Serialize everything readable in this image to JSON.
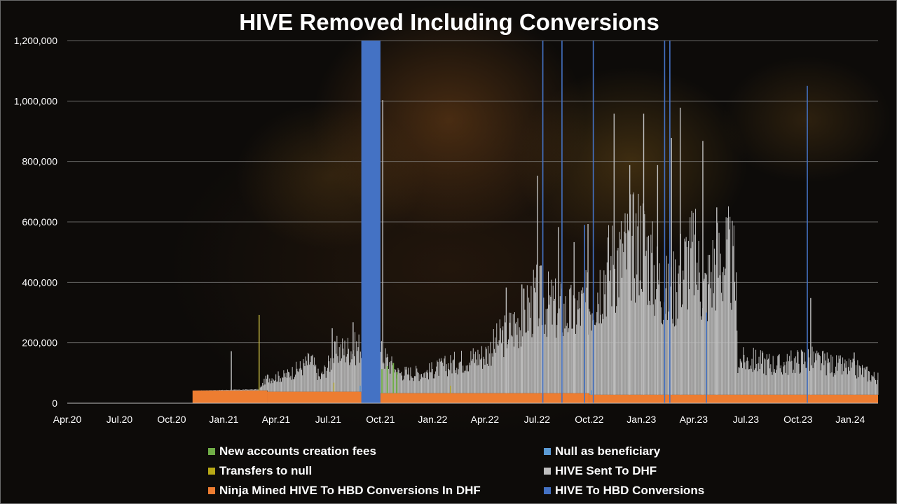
{
  "chart_data": {
    "type": "bar",
    "stacked": true,
    "title": "HIVE Removed Including Conversions",
    "xlabel": "",
    "ylabel": "",
    "ylim": [
      0,
      1200000
    ],
    "yticks": [
      0,
      200000,
      400000,
      600000,
      800000,
      1000000,
      1200000
    ],
    "ytick_labels": [
      "0",
      "200,000",
      "400,000",
      "600,000",
      "800,000",
      "1,000,000",
      "1,200,000"
    ],
    "grid": true,
    "legend_position": "bottom",
    "x_ticks": [
      {
        "label": "Apr.20",
        "m": 0
      },
      {
        "label": "Jul.20",
        "m": 3
      },
      {
        "label": "Oct.20",
        "m": 6
      },
      {
        "label": "Jan.21",
        "m": 9
      },
      {
        "label": "Apr.21",
        "m": 12
      },
      {
        "label": "Jul.21",
        "m": 15
      },
      {
        "label": "Oct.21",
        "m": 18
      },
      {
        "label": "Jan.22",
        "m": 21
      },
      {
        "label": "Apr.22",
        "m": 24
      },
      {
        "label": "Jul.22",
        "m": 27
      },
      {
        "label": "Oct.22",
        "m": 30
      },
      {
        "label": "Jan.23",
        "m": 33
      },
      {
        "label": "Apr.23",
        "m": 36
      },
      {
        "label": "Jul.23",
        "m": 39
      },
      {
        "label": "Oct.23",
        "m": 42
      },
      {
        "label": "Jan.24",
        "m": 45
      }
    ],
    "x_domain_months": [
      0,
      46.6
    ],
    "series": [
      {
        "name": "New accounts creation fees",
        "color": "#70ad47"
      },
      {
        "name": "Null as beneficiary",
        "color": "#5b9bd5"
      },
      {
        "name": "Transfers to null",
        "color": "#b8a916"
      },
      {
        "name": "HIVE Sent To DHF",
        "color": "#bfbfbf"
      },
      {
        "name": "Ninja Mined HIVE To HBD Conversions In DHF",
        "color": "#ed7d31"
      },
      {
        "name": "HIVE To HBD Conversions",
        "color": "#4472c4"
      }
    ],
    "ninja_mined_level": [
      {
        "from": 0,
        "to": 7.2,
        "value": 0
      },
      {
        "from": 7.2,
        "to": 11.5,
        "value": 42000
      },
      {
        "from": 11.5,
        "to": 17.5,
        "value": 38000
      },
      {
        "from": 17.5,
        "to": 30,
        "value": 33000
      },
      {
        "from": 30,
        "to": 46.6,
        "value": 28000
      }
    ],
    "dhf_envelope": [
      {
        "m": 7.2,
        "v": 0
      },
      {
        "m": 11.0,
        "v": 5000
      },
      {
        "m": 11.5,
        "v": 60000
      },
      {
        "m": 12.5,
        "v": 70000
      },
      {
        "m": 13.5,
        "v": 110000
      },
      {
        "m": 14.0,
        "v": 140000
      },
      {
        "m": 14.5,
        "v": 60000
      },
      {
        "m": 15.5,
        "v": 180000
      },
      {
        "m": 16.5,
        "v": 190000
      },
      {
        "m": 17.5,
        "v": 220000
      },
      {
        "m": 19.0,
        "v": 90000
      },
      {
        "m": 20.5,
        "v": 90000
      },
      {
        "m": 22.5,
        "v": 140000
      },
      {
        "m": 24.0,
        "v": 170000
      },
      {
        "m": 25.0,
        "v": 250000
      },
      {
        "m": 26.0,
        "v": 320000
      },
      {
        "m": 27.0,
        "v": 420000
      },
      {
        "m": 28.0,
        "v": 370000
      },
      {
        "m": 29.0,
        "v": 350000
      },
      {
        "m": 30.0,
        "v": 400000
      },
      {
        "m": 31.0,
        "v": 560000
      },
      {
        "m": 32.0,
        "v": 620000
      },
      {
        "m": 33.0,
        "v": 700000
      },
      {
        "m": 33.8,
        "v": 520000
      },
      {
        "m": 34.6,
        "v": 430000
      },
      {
        "m": 35.3,
        "v": 560000
      },
      {
        "m": 36.0,
        "v": 620000
      },
      {
        "m": 36.6,
        "v": 450000
      },
      {
        "m": 37.2,
        "v": 580000
      },
      {
        "m": 38.0,
        "v": 600000
      },
      {
        "m": 38.4,
        "v": 520000
      },
      {
        "m": 38.5,
        "v": 150000
      },
      {
        "m": 39.5,
        "v": 150000
      },
      {
        "m": 41.0,
        "v": 130000
      },
      {
        "m": 42.5,
        "v": 160000
      },
      {
        "m": 44.0,
        "v": 130000
      },
      {
        "m": 45.5,
        "v": 110000
      },
      {
        "m": 46.6,
        "v": 70000
      }
    ],
    "dhf_spikes": [
      {
        "m": 9.4,
        "v": 130000
      },
      {
        "m": 11.0,
        "v": 250000
      },
      {
        "m": 15.2,
        "v": 210000
      },
      {
        "m": 16.4,
        "v": 230000
      },
      {
        "m": 17.0,
        "v": 610000
      },
      {
        "m": 17.2,
        "v": 650000
      },
      {
        "m": 18.1,
        "v": 970000
      },
      {
        "m": 25.2,
        "v": 350000
      },
      {
        "m": 26.1,
        "v": 360000
      },
      {
        "m": 27.0,
        "v": 720000
      },
      {
        "m": 28.2,
        "v": 550000
      },
      {
        "m": 29.1,
        "v": 500000
      },
      {
        "m": 29.9,
        "v": 560000
      },
      {
        "m": 31.4,
        "v": 930000
      },
      {
        "m": 32.3,
        "v": 760000
      },
      {
        "m": 33.1,
        "v": 930000
      },
      {
        "m": 33.9,
        "v": 760000
      },
      {
        "m": 34.7,
        "v": 850000
      },
      {
        "m": 35.2,
        "v": 950000
      },
      {
        "m": 36.5,
        "v": 840000
      },
      {
        "m": 37.3,
        "v": 620000
      },
      {
        "m": 42.7,
        "v": 320000
      },
      {
        "m": 45.2,
        "v": 140000
      }
    ],
    "conversion_block": {
      "from": 16.9,
      "to": 18.0,
      "value": 1200000
    },
    "conversion_spikes": [
      {
        "m": 17.1,
        "v": 1200000
      },
      {
        "m": 17.5,
        "v": 1200000
      },
      {
        "m": 17.9,
        "v": 1200000
      },
      {
        "m": 27.3,
        "v": 1200000
      },
      {
        "m": 28.4,
        "v": 1200000
      },
      {
        "m": 29.7,
        "v": 590000
      },
      {
        "m": 30.2,
        "v": 1200000
      },
      {
        "m": 34.3,
        "v": 1200000
      },
      {
        "m": 34.6,
        "v": 1200000
      },
      {
        "m": 36.7,
        "v": 300000
      },
      {
        "m": 42.5,
        "v": 1050000
      }
    ],
    "new_account_fees": [
      {
        "m": 18.05,
        "v": 80000
      },
      {
        "m": 18.35,
        "v": 90000
      },
      {
        "m": 18.7,
        "v": 100000
      },
      {
        "m": 18.9,
        "v": 70000
      }
    ],
    "transfers_to_null": [
      {
        "m": 11.0,
        "v": 250000
      },
      {
        "m": 15.3,
        "v": 30000
      },
      {
        "m": 22.0,
        "v": 25000
      }
    ],
    "null_as_beneficiary": [
      {
        "m": 16.8,
        "v": 20000
      },
      {
        "m": 30.1,
        "v": 15000
      }
    ]
  }
}
